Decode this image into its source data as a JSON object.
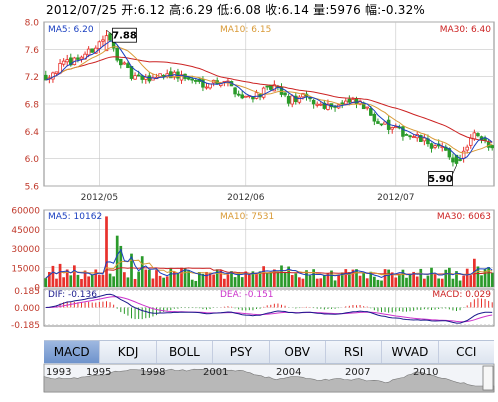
{
  "header": {
    "date": "2012/07/25",
    "open": "开:6.12",
    "high": "高:6.29",
    "low": "低:6.08",
    "close": "收:6.14",
    "volume": "量:5976",
    "change": "幅:-0.32%"
  },
  "tabs": [
    "MACD",
    "KDJ",
    "BOLL",
    "PSY",
    "OBV",
    "RSI",
    "WVAD",
    "CCI"
  ],
  "active_tab": "MACD",
  "colors": {
    "up": "#e8312c",
    "down": "#2a9a2a",
    "ma5": "#1a3fc0",
    "ma10": "#d99a36",
    "ma30": "#cc2222",
    "dif": "#1a1a8c",
    "dea": "#cc33cc",
    "grid": "#c6c6c6",
    "frame": "#8a8a8a"
  },
  "chart_data": [
    {
      "type": "candlestick",
      "name": "price",
      "ylim": [
        5.6,
        8.0
      ],
      "yticks": [
        "8.0",
        "7.6",
        "7.2",
        "6.8",
        "6.4",
        "6.0",
        "5.6"
      ],
      "xlabels": [
        "2012/05",
        "2012/06",
        "2012/07"
      ],
      "legend": [
        {
          "label": "MA5: 6.20",
          "color": "ma5"
        },
        {
          "label": "MA10: 6.15",
          "color": "ma10"
        },
        {
          "label": "MA30: 6.40",
          "color": "ma30"
        }
      ],
      "annotations": [
        {
          "label": "7.88",
          "value": 7.88,
          "index": 17
        },
        {
          "label": "5.90",
          "value": 5.9,
          "index": 115
        }
      ],
      "anchors": [
        [
          0,
          7.2
        ],
        [
          4,
          7.35
        ],
        [
          8,
          7.45
        ],
        [
          12,
          7.55
        ],
        [
          16,
          7.75
        ],
        [
          17,
          7.8
        ],
        [
          20,
          7.5
        ],
        [
          24,
          7.2
        ],
        [
          28,
          7.15
        ],
        [
          33,
          7.25
        ],
        [
          38,
          7.2
        ],
        [
          44,
          7.1
        ],
        [
          50,
          7.15
        ],
        [
          55,
          6.9
        ],
        [
          60,
          6.95
        ],
        [
          64,
          7.05
        ],
        [
          68,
          6.85
        ],
        [
          72,
          6.9
        ],
        [
          76,
          6.8
        ],
        [
          80,
          6.78
        ],
        [
          84,
          6.82
        ],
        [
          88,
          6.8
        ],
        [
          92,
          6.6
        ],
        [
          96,
          6.45
        ],
        [
          100,
          6.38
        ],
        [
          104,
          6.3
        ],
        [
          108,
          6.2
        ],
        [
          112,
          6.1
        ],
        [
          115,
          5.95
        ],
        [
          118,
          6.15
        ],
        [
          120,
          6.35
        ],
        [
          122,
          6.25
        ],
        [
          125,
          6.15
        ]
      ]
    },
    {
      "type": "bar",
      "name": "volume",
      "ylim": [
        0,
        60000
      ],
      "yticks": [
        "60000",
        "45000",
        "30000",
        "15000",
        "0"
      ],
      "legend": [
        {
          "label": "MA5: 10162",
          "color": "ma5"
        },
        {
          "label": "MA10: 7531",
          "color": "ma10"
        },
        {
          "label": "MA30: 6063",
          "color": "ma30"
        }
      ]
    },
    {
      "type": "macd",
      "name": "MACD",
      "ylim": [
        -0.2,
        0.2
      ],
      "yticks": [
        "0.185",
        "0.000",
        "-0.185"
      ],
      "legend": [
        {
          "label": "DIF: -0.136",
          "color": "dif"
        },
        {
          "label": "DEA: -0.151",
          "color": "dea"
        },
        {
          "label": "MACD: 0.029",
          "color": "ma30"
        }
      ]
    },
    {
      "type": "area",
      "name": "navigator",
      "xlabels": [
        "1993",
        "1995",
        "1998",
        "2001",
        "2004",
        "2007",
        "2010"
      ]
    }
  ]
}
